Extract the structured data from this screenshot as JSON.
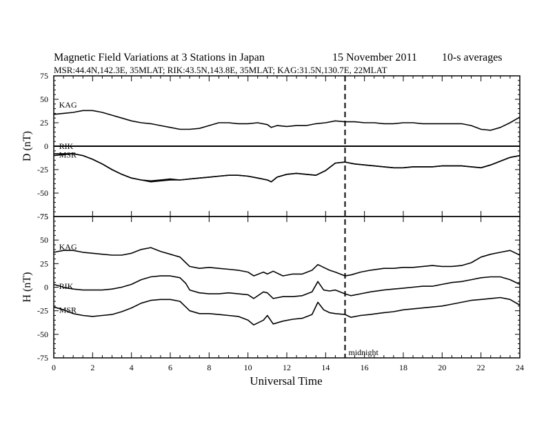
{
  "chart_data": {
    "type": "line",
    "title": "Magnetic Field Variations at 3 Stations in Japan",
    "date": "15 November 2011",
    "averaging": "10-s averages",
    "subtitle": "MSR:44.4N,142.3E, 35MLAT;  RIK:43.5N,143.8E, 35MLAT;  KAG:31.5N,130.7E, 22MLAT",
    "xlabel": "Universal Time",
    "xlim": [
      0,
      24
    ],
    "xticks": [
      "0",
      "2",
      "4",
      "6",
      "8",
      "10",
      "12",
      "14",
      "16",
      "18",
      "20",
      "22",
      "24"
    ],
    "annotation": {
      "x": 15,
      "label": "midnight"
    },
    "panels": [
      {
        "ylabel": "D (nT)",
        "ylim": [
          -75,
          75
        ],
        "yticks": [
          "75",
          "50",
          "25",
          "0",
          "-25",
          "-50",
          "-75"
        ],
        "zero_line": true,
        "series": [
          {
            "name": "KAG",
            "label_x": 0.2,
            "label_y": 41,
            "x": [
              0,
              0.5,
              1,
              1.5,
              2,
              2.5,
              3,
              3.5,
              4,
              4.5,
              5,
              5.5,
              6,
              6.5,
              7,
              7.5,
              8,
              8.5,
              9,
              9.5,
              10,
              10.5,
              11,
              11.2,
              11.5,
              12,
              12.5,
              13,
              13.5,
              14,
              14.5,
              15,
              15.5,
              16,
              16.5,
              17,
              17.5,
              18,
              18.5,
              19,
              19.5,
              20,
              20.5,
              21,
              21.5,
              22,
              22.5,
              23,
              23.5,
              24
            ],
            "values": [
              34,
              35,
              36,
              38,
              38,
              36,
              33,
              30,
              27,
              25,
              24,
              22,
              20,
              18,
              18,
              19,
              22,
              25,
              25,
              24,
              24,
              25,
              23,
              20,
              22,
              21,
              22,
              22,
              24,
              25,
              27,
              26,
              26,
              25,
              25,
              24,
              24,
              25,
              25,
              24,
              24,
              24,
              24,
              24,
              22,
              18,
              17,
              20,
              25,
              31
            ]
          },
          {
            "name": "RIK",
            "label_x": 0.2,
            "label_y": -3,
            "x": [
              0,
              0.5,
              1,
              1.5,
              2,
              2.5,
              3,
              3.5,
              4,
              4.5,
              5,
              5.5,
              6,
              6.5,
              7,
              7.5,
              8,
              8.5,
              9,
              9.5,
              10,
              10.5,
              11,
              11.2,
              11.5,
              12,
              12.5,
              13,
              13.5,
              14,
              14.5,
              15,
              15.5,
              16,
              16.5,
              17,
              17.5,
              18,
              18.5,
              19,
              19.5,
              20,
              20.5,
              21,
              21.5,
              22,
              22.5,
              23,
              23.5,
              24
            ],
            "values": [
              -10,
              -9,
              -8,
              -10,
              -14,
              -19,
              -25,
              -30,
              -34,
              -36,
              -37,
              -36,
              -35,
              -36,
              -35,
              -34,
              -33,
              -32,
              -31,
              -31,
              -32,
              -34,
              -36,
              -38,
              -33,
              -30,
              -29,
              -30,
              -31,
              -26,
              -18,
              -17,
              -19,
              -20,
              -21,
              -22,
              -23,
              -23,
              -22,
              -22,
              -22,
              -21,
              -21,
              -21,
              -22,
              -23,
              -20,
              -16,
              -12,
              -10
            ]
          },
          {
            "name": "MSR",
            "label_x": 0.2,
            "label_y": -12,
            "x": [
              0,
              0.5,
              1,
              1.5,
              2,
              2.5,
              3,
              3.5,
              4,
              4.5,
              5,
              5.5,
              6,
              6.5,
              7,
              7.5,
              8,
              8.5,
              9,
              9.5,
              10,
              10.5,
              11,
              11.2,
              11.5,
              12,
              12.5,
              13,
              13.5,
              14,
              14.5,
              15,
              15.5,
              16,
              16.5,
              17,
              17.5,
              18,
              18.5,
              19,
              19.5,
              20,
              20.5,
              21,
              21.5,
              22,
              22.5,
              23,
              23.5,
              24
            ],
            "values": [
              -8,
              -8,
              -8,
              -10,
              -14,
              -19,
              -25,
              -30,
              -34,
              -36,
              -38,
              -37,
              -36,
              -36,
              -35,
              -34,
              -33,
              -32,
              -31,
              -31,
              -32,
              -34,
              -36,
              -38,
              -33,
              -30,
              -29,
              -30,
              -31,
              -26,
              -18,
              -17,
              -19,
              -20,
              -21,
              -22,
              -23,
              -23,
              -22,
              -22,
              -22,
              -21,
              -21,
              -21,
              -22,
              -23,
              -20,
              -16,
              -12,
              -10
            ]
          }
        ]
      },
      {
        "ylabel": "H (nT)",
        "ylim": [
          -75,
          75
        ],
        "yticks": [
          "75",
          "50",
          "25",
          "0",
          "-25",
          "-50",
          "-75"
        ],
        "zero_line": false,
        "series": [
          {
            "name": "KAG",
            "label_x": 0.2,
            "label_y": 40,
            "x": [
              0,
              0.5,
              1,
              1.5,
              2,
              2.5,
              3,
              3.5,
              4,
              4.5,
              5,
              5.5,
              6,
              6.5,
              6.8,
              7,
              7.5,
              8,
              8.5,
              9,
              9.5,
              10,
              10.3,
              10.8,
              11,
              11.3,
              11.8,
              12.3,
              12.8,
              13.3,
              13.6,
              13.9,
              14.2,
              14.5,
              15,
              15.3,
              15.8,
              16.3,
              17,
              17.5,
              18,
              18.5,
              19,
              19.5,
              20,
              20.5,
              21,
              21.5,
              22,
              22.5,
              23,
              23.5,
              24
            ],
            "values": [
              37,
              39,
              39,
              37,
              36,
              35,
              34,
              34,
              36,
              40,
              42,
              38,
              35,
              32,
              26,
              22,
              20,
              21,
              20,
              19,
              18,
              16,
              12,
              16,
              14,
              17,
              12,
              14,
              14,
              18,
              24,
              21,
              18,
              16,
              12,
              13,
              16,
              18,
              20,
              20,
              21,
              21,
              22,
              23,
              22,
              22,
              23,
              26,
              32,
              35,
              37,
              39,
              34
            ]
          },
          {
            "name": "RIK",
            "label_x": 0.2,
            "label_y": -2,
            "x": [
              0,
              0.5,
              1,
              1.5,
              2,
              2.5,
              3,
              3.5,
              4,
              4.5,
              5,
              5.5,
              6,
              6.5,
              6.8,
              7,
              7.5,
              8,
              8.5,
              9,
              9.5,
              10,
              10.3,
              10.8,
              11,
              11.3,
              11.8,
              12.3,
              12.8,
              13.3,
              13.6,
              13.9,
              14.2,
              14.5,
              15,
              15.3,
              15.8,
              16.3,
              17,
              17.5,
              18,
              18.5,
              19,
              19.5,
              20,
              20.5,
              21,
              21.5,
              22,
              22.5,
              23,
              23.5,
              24
            ],
            "values": [
              3,
              0,
              -2,
              -3,
              -3,
              -3,
              -2,
              0,
              3,
              8,
              11,
              12,
              12,
              10,
              4,
              -3,
              -6,
              -7,
              -7,
              -6,
              -7,
              -8,
              -12,
              -5,
              -6,
              -12,
              -10,
              -10,
              -9,
              -5,
              6,
              -3,
              -4,
              -3,
              -7,
              -9,
              -7,
              -5,
              -3,
              -2,
              -1,
              0,
              1,
              1,
              3,
              5,
              6,
              8,
              10,
              11,
              11,
              8,
              3
            ]
          },
          {
            "name": "MSR",
            "label_x": 0.2,
            "label_y": -27,
            "x": [
              0,
              0.5,
              1,
              1.5,
              2,
              2.5,
              3,
              3.5,
              4,
              4.5,
              5,
              5.5,
              6,
              6.5,
              6.8,
              7,
              7.5,
              8,
              8.5,
              9,
              9.5,
              10,
              10.3,
              10.8,
              11,
              11.3,
              11.8,
              12.3,
              12.8,
              13.3,
              13.6,
              13.9,
              14.2,
              14.5,
              15,
              15.3,
              15.8,
              16.3,
              17,
              17.5,
              18,
              18.5,
              19,
              19.5,
              20,
              20.5,
              21,
              21.5,
              22,
              22.5,
              23,
              23.5,
              24
            ],
            "values": [
              -21,
              -24,
              -28,
              -30,
              -31,
              -30,
              -29,
              -26,
              -22,
              -17,
              -14,
              -13,
              -13,
              -15,
              -21,
              -25,
              -28,
              -28,
              -29,
              -30,
              -31,
              -35,
              -40,
              -35,
              -30,
              -39,
              -36,
              -34,
              -33,
              -29,
              -16,
              -24,
              -27,
              -28,
              -29,
              -32,
              -30,
              -29,
              -27,
              -26,
              -24,
              -23,
              -22,
              -21,
              -20,
              -18,
              -16,
              -14,
              -13,
              -12,
              -11,
              -13,
              -19
            ]
          }
        ]
      }
    ]
  }
}
